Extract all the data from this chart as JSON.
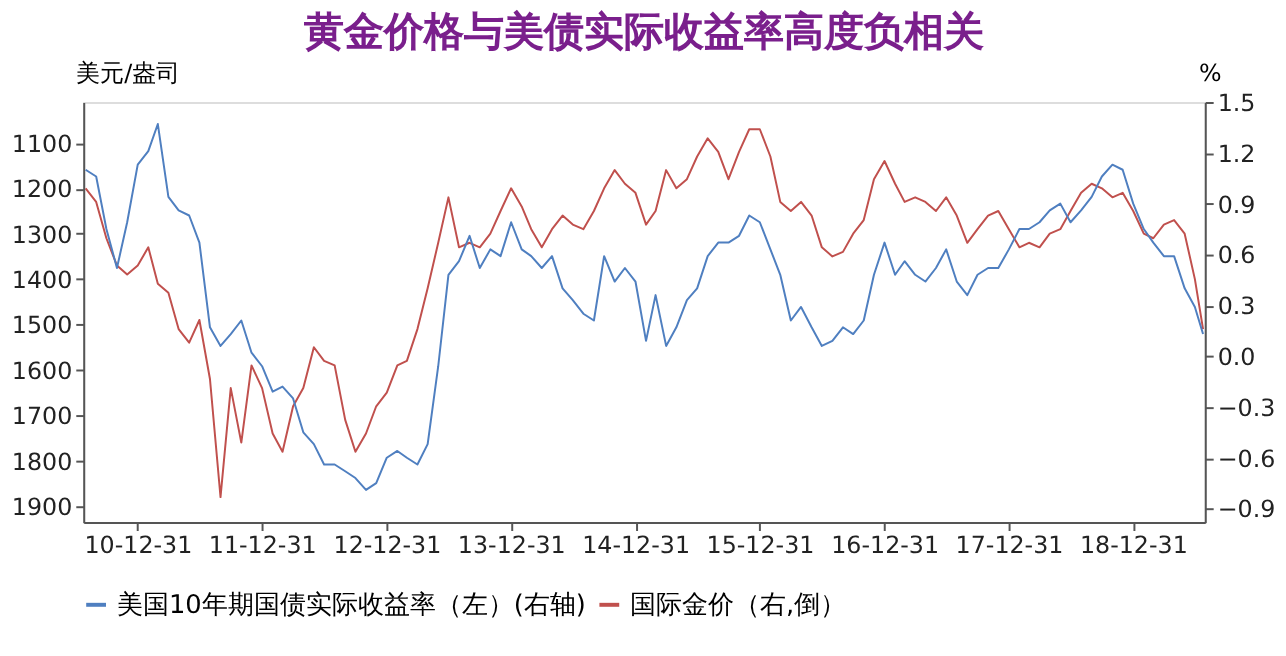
{
  "chart_data": {
    "type": "line",
    "title": "黄金价格与美债实际收益率高度负相关",
    "x": [
      "2010-08",
      "2010-09",
      "2010-10",
      "2010-11",
      "2010-12",
      "2011-01",
      "2011-02",
      "2011-03",
      "2011-04",
      "2011-05",
      "2011-06",
      "2011-07",
      "2011-08",
      "2011-09",
      "2011-10",
      "2011-11",
      "2011-12",
      "2012-01",
      "2012-02",
      "2012-03",
      "2012-04",
      "2012-05",
      "2012-06",
      "2012-07",
      "2012-08",
      "2012-09",
      "2012-10",
      "2012-11",
      "2012-12",
      "2013-01",
      "2013-02",
      "2013-03",
      "2013-04",
      "2013-05",
      "2013-06",
      "2013-07",
      "2013-08",
      "2013-09",
      "2013-10",
      "2013-11",
      "2013-12",
      "2014-01",
      "2014-02",
      "2014-03",
      "2014-04",
      "2014-05",
      "2014-06",
      "2014-07",
      "2014-08",
      "2014-09",
      "2014-10",
      "2014-11",
      "2014-12",
      "2015-01",
      "2015-02",
      "2015-03",
      "2015-04",
      "2015-05",
      "2015-06",
      "2015-07",
      "2015-08",
      "2015-09",
      "2015-10",
      "2015-11",
      "2015-12",
      "2016-01",
      "2016-02",
      "2016-03",
      "2016-04",
      "2016-05",
      "2016-06",
      "2016-07",
      "2016-08",
      "2016-09",
      "2016-10",
      "2016-11",
      "2016-12",
      "2017-01",
      "2017-02",
      "2017-03",
      "2017-04",
      "2017-05",
      "2017-06",
      "2017-07",
      "2017-08",
      "2017-09",
      "2017-10",
      "2017-11",
      "2017-12",
      "2018-01",
      "2018-02",
      "2018-03",
      "2018-04",
      "2018-05",
      "2018-06",
      "2018-07",
      "2018-08",
      "2018-09",
      "2018-10",
      "2018-11",
      "2018-12",
      "2019-01",
      "2019-02",
      "2019-03",
      "2019-04",
      "2019-05",
      "2019-06",
      "2019-07",
      "2019-07-25"
    ],
    "series": [
      {
        "name": "美国10年期国债实际收益率（左）(右轴)",
        "color": "#4f7fc0",
        "axis": "y2",
        "values": [
          1.1,
          1.06,
          0.75,
          0.52,
          0.79,
          1.13,
          1.21,
          1.37,
          0.94,
          0.86,
          0.83,
          0.67,
          0.17,
          0.06,
          0.13,
          0.21,
          0.02,
          -0.06,
          -0.21,
          -0.18,
          -0.25,
          -0.45,
          -0.52,
          -0.64,
          -0.64,
          -0.68,
          -0.72,
          -0.79,
          -0.75,
          -0.6,
          -0.56,
          -0.6,
          -0.64,
          -0.52,
          -0.06,
          0.48,
          0.56,
          0.71,
          0.52,
          0.63,
          0.59,
          0.79,
          0.63,
          0.59,
          0.52,
          0.59,
          0.4,
          0.33,
          0.25,
          0.21,
          0.59,
          0.44,
          0.52,
          0.44,
          0.09,
          0.36,
          0.06,
          0.17,
          0.33,
          0.4,
          0.59,
          0.67,
          0.67,
          0.71,
          0.83,
          0.79,
          0.63,
          0.48,
          0.21,
          0.29,
          0.17,
          0.06,
          0.09,
          0.17,
          0.13,
          0.21,
          0.48,
          0.67,
          0.48,
          0.56,
          0.48,
          0.44,
          0.52,
          0.63,
          0.44,
          0.36,
          0.48,
          0.52,
          0.52,
          0.63,
          0.75,
          0.75,
          0.79,
          0.86,
          0.9,
          0.79,
          0.86,
          0.94,
          1.06,
          1.13,
          1.1,
          0.9,
          0.75,
          0.67,
          0.59,
          0.59,
          0.4,
          0.29,
          0.13
        ]
      },
      {
        "name": "国际金价（右,倒）",
        "color": "#c0504d",
        "axis": "y",
        "values": [
          1200,
          1230,
          1310,
          1370,
          1390,
          1370,
          1330,
          1410,
          1430,
          1510,
          1540,
          1490,
          1620,
          1880,
          1640,
          1760,
          1590,
          1640,
          1740,
          1780,
          1680,
          1640,
          1550,
          1580,
          1590,
          1710,
          1780,
          1740,
          1680,
          1650,
          1590,
          1580,
          1510,
          1420,
          1320,
          1220,
          1330,
          1320,
          1330,
          1300,
          1250,
          1200,
          1240,
          1290,
          1330,
          1290,
          1260,
          1280,
          1290,
          1250,
          1200,
          1160,
          1190,
          1210,
          1280,
          1250,
          1160,
          1200,
          1180,
          1130,
          1090,
          1120,
          1180,
          1120,
          1070,
          1070,
          1130,
          1230,
          1250,
          1230,
          1260,
          1330,
          1350,
          1340,
          1300,
          1270,
          1180,
          1140,
          1190,
          1230,
          1220,
          1230,
          1250,
          1220,
          1260,
          1320,
          1290,
          1260,
          1250,
          1290,
          1330,
          1320,
          1330,
          1300,
          1290,
          1250,
          1210,
          1190,
          1200,
          1220,
          1210,
          1250,
          1300,
          1310,
          1280,
          1270,
          1300,
          1400,
          1510
        ]
      }
    ],
    "ylabel": "美元/盎司",
    "y2label": "%",
    "ylim": [
      1935,
      1010
    ],
    "yticks": [
      1100,
      1200,
      1300,
      1400,
      1500,
      1600,
      1700,
      1800,
      1900
    ],
    "y2lim": [
      -0.98,
      1.5
    ],
    "y2ticks": [
      -0.9,
      -0.6,
      -0.3,
      {
        "value": 0,
        "label": "0.0"
      },
      0.3,
      0.6,
      0.9,
      1.2,
      1.5
    ],
    "xlim": [
      "2010-07-25",
      "2019-07-30"
    ],
    "xticks": [
      {
        "value": "2010-12-31",
        "label": "10-12-31"
      },
      {
        "value": "2011-12-31",
        "label": "11-12-31"
      },
      {
        "value": "2012-12-31",
        "label": "12-12-31"
      },
      {
        "value": "2013-12-31",
        "label": "13-12-31"
      },
      {
        "value": "2014-12-31",
        "label": "14-12-31"
      },
      {
        "value": "2015-12-31",
        "label": "15-12-31"
      },
      {
        "value": "2016-12-31",
        "label": "16-12-31"
      },
      {
        "value": "2017-12-31",
        "label": "17-12-31"
      },
      {
        "value": "2018-12-31",
        "label": "18-12-31"
      }
    ],
    "grid": false,
    "legend": "bottom",
    "line_style": "solid"
  }
}
